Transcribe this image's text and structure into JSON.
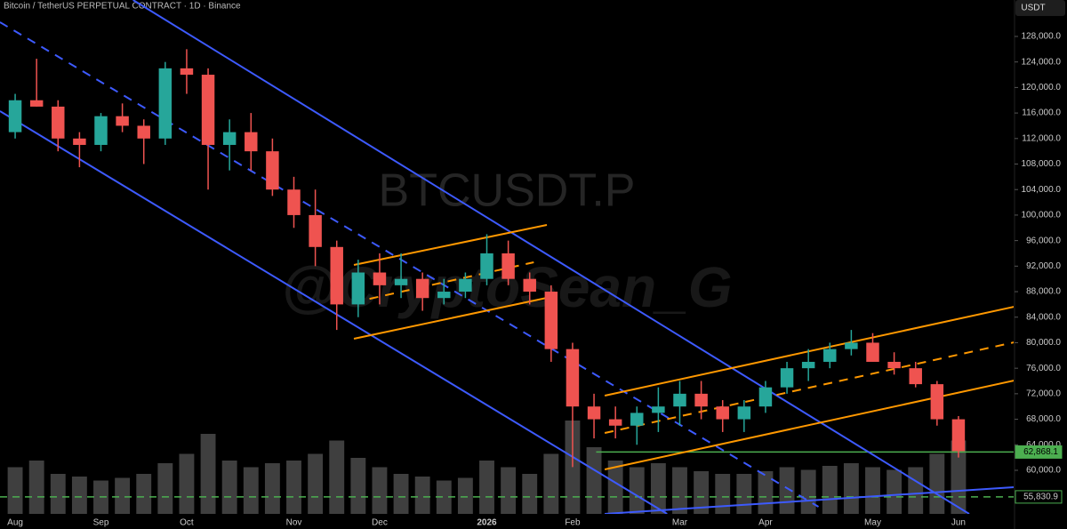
{
  "chart_data": {
    "type": "candlestick",
    "title": "Bitcoin / TetherUS PERPETUAL CONTRACT · 1D · Binance",
    "currency_button": "USDT",
    "watermark": "BTCUSDT.P",
    "watermark2": "@CryptoSean_G",
    "up_color": "#26a69a",
    "down_color": "#ef5350",
    "volume_color": "#5a5a5a",
    "categories": [
      "Aug",
      null,
      null,
      null,
      "Sep",
      null,
      null,
      null,
      "Oct",
      null,
      null,
      null,
      null,
      "Nov",
      null,
      null,
      null,
      "Dec",
      null,
      null,
      null,
      null,
      "2026",
      null,
      null,
      null,
      "Feb",
      null,
      null,
      null,
      null,
      "Mar",
      null,
      null,
      null,
      "Apr",
      null,
      null,
      null,
      null,
      "May",
      null,
      null,
      null,
      "Jun"
    ],
    "open": [
      113,
      118,
      117,
      112,
      111,
      115.5,
      114,
      112,
      123,
      122,
      111,
      113,
      110,
      104,
      100,
      95,
      86,
      91,
      89,
      90,
      87,
      88,
      90,
      94,
      90,
      88,
      79,
      70,
      68,
      67,
      69,
      70,
      72,
      70,
      68,
      70,
      73,
      76,
      77,
      79,
      80,
      77,
      76,
      73.5,
      68
    ],
    "high": [
      119,
      124.5,
      118,
      113,
      116,
      117.5,
      115,
      124,
      126,
      123,
      115,
      116,
      112,
      106,
      104,
      96,
      93,
      94,
      94,
      91,
      90,
      91,
      97,
      96,
      91,
      89,
      80,
      72,
      70,
      70,
      73,
      74,
      74,
      71,
      71,
      74,
      77,
      79,
      80,
      82,
      81.5,
      78.5,
      77,
      74,
      68.5
    ],
    "low": [
      112,
      117,
      110,
      107.5,
      110,
      113,
      108,
      111,
      119,
      104,
      107,
      107,
      103,
      98,
      92,
      82,
      84,
      86,
      87,
      85,
      86,
      87,
      89,
      89,
      86,
      77,
      60.5,
      65,
      65,
      64,
      66,
      67,
      68,
      66,
      66,
      69,
      72,
      74,
      76,
      78,
      77,
      75,
      73,
      67,
      62
    ],
    "close": [
      118,
      117,
      112,
      111,
      115.5,
      114,
      112,
      123,
      122,
      111,
      113,
      110,
      104,
      100,
      95,
      86,
      91,
      89,
      90,
      87,
      88,
      90,
      94,
      90,
      88,
      79,
      70,
      68,
      67,
      69,
      70,
      72,
      70,
      68,
      70,
      73,
      76,
      77,
      79,
      80,
      77,
      76,
      73.5,
      68,
      63
    ],
    "price_scale": 1000,
    "volume": [
      35,
      40,
      30,
      28,
      25,
      27,
      30,
      38,
      45,
      60,
      40,
      35,
      38,
      40,
      45,
      55,
      42,
      35,
      30,
      28,
      25,
      27,
      40,
      35,
      30,
      45,
      70,
      50,
      40,
      35,
      38,
      35,
      32,
      30,
      30,
      32,
      35,
      33,
      36,
      38,
      35,
      33,
      35,
      45,
      55
    ],
    "volume_lim": [
      0,
      100
    ],
    "ylim": [
      53170,
      133710
    ],
    "yticks": [
      {
        "value": 60000,
        "label": "60,000.0"
      },
      {
        "value": 64000,
        "label": "64,000.0"
      },
      {
        "value": 68000,
        "label": "68,000.0"
      },
      {
        "value": 72000,
        "label": "72,000.0"
      },
      {
        "value": 76000,
        "label": "76,000.0"
      },
      {
        "value": 80000,
        "label": "80,000.0"
      },
      {
        "value": 84000,
        "label": "84,000.0"
      },
      {
        "value": 88000,
        "label": "88,000.0"
      },
      {
        "value": 92000,
        "label": "92,000.0"
      },
      {
        "value": 96000,
        "label": "96,000.0"
      },
      {
        "value": 100000,
        "label": "100,000.0"
      },
      {
        "value": 104000,
        "label": "104,000.0"
      },
      {
        "value": 108000,
        "label": "108,000.0"
      },
      {
        "value": 112000,
        "label": "112,000.0"
      },
      {
        "value": 116000,
        "label": "116,000.0"
      },
      {
        "value": 120000,
        "label": "120,000.0"
      },
      {
        "value": 124000,
        "label": "124,000.0"
      },
      {
        "value": 128000,
        "label": "128,000.0"
      }
    ],
    "trendlines": [
      {
        "color": "#3d5afe",
        "dashed": false,
        "points": [
          [
            5.5,
            133710
          ],
          [
            44.5,
            53170
          ]
        ]
      },
      {
        "color": "#3d5afe",
        "dashed": false,
        "points": [
          [
            -0.71,
            116295
          ],
          [
            30.41,
            53170
          ]
        ]
      },
      {
        "color": "#3d5afe",
        "dashed": true,
        "points": [
          [
            -0.71,
            130230
          ],
          [
            37.47,
            54285
          ]
        ]
      },
      {
        "color": "#3d5afe",
        "dashed": false,
        "points": [
          [
            27.5,
            53170
          ],
          [
            46.6,
            57350
          ]
        ]
      },
      {
        "color": "#ff9800",
        "dashed": false,
        "points": [
          [
            15.8,
            92187
          ],
          [
            24.8,
            98458
          ]
        ]
      },
      {
        "color": "#ff9800",
        "dashed": false,
        "points": [
          [
            15.8,
            80620
          ],
          [
            24.8,
            87030
          ]
        ]
      },
      {
        "color": "#ff9800",
        "dashed": true,
        "points": [
          [
            15.8,
            86334
          ],
          [
            24.19,
            92605
          ]
        ]
      },
      {
        "color": "#ff9800",
        "dashed": false,
        "points": [
          [
            27.5,
            71703
          ],
          [
            46.6,
            85638
          ]
        ]
      },
      {
        "color": "#ff9800",
        "dashed": false,
        "points": [
          [
            27.5,
            60137
          ],
          [
            46.6,
            74072
          ]
        ]
      },
      {
        "color": "#ff9800",
        "dashed": true,
        "points": [
          [
            27.5,
            65850
          ],
          [
            46.6,
            80064
          ]
        ]
      }
    ],
    "price_lines": [
      {
        "value": 62868.1,
        "label": "62,868.1",
        "color": "#4caf50",
        "dashed": false,
        "start": 27.1
      },
      {
        "value": 55830.9,
        "label": "55,830.9",
        "color": "#4caf50",
        "dashed": true
      }
    ]
  }
}
